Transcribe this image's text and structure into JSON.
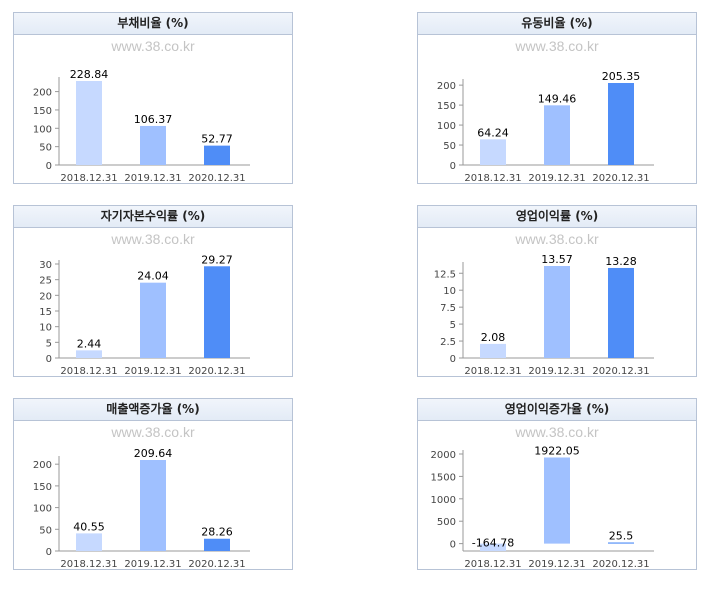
{
  "watermark": "www.38.co.kr",
  "colors": [
    "#c6d9ff",
    "#9fc0ff",
    "#4f8df7"
  ],
  "chart_data": [
    {
      "type": "bar",
      "title": "부채비율 (%)",
      "categories": [
        "2018.12.31",
        "2019.12.31",
        "2020.12.31"
      ],
      "values": [
        228.84,
        106.37,
        52.77
      ],
      "value_labels": [
        "228.84",
        "106.37",
        "52.77"
      ],
      "yticks": [
        0,
        50,
        100,
        150,
        200
      ],
      "ylim": [
        0,
        228.84
      ],
      "xlabel": "",
      "ylabel": ""
    },
    {
      "type": "bar",
      "title": "유동비율 (%)",
      "categories": [
        "2018.12.31",
        "2019.12.31",
        "2020.12.31"
      ],
      "values": [
        64.24,
        149.46,
        205.35
      ],
      "value_labels": [
        "64.24",
        "149.46",
        "205.35"
      ],
      "yticks": [
        0,
        50,
        100,
        150,
        200
      ],
      "ylim": [
        0,
        205.35
      ],
      "xlabel": "",
      "ylabel": ""
    },
    {
      "type": "bar",
      "title": "자기자본수익률 (%)",
      "categories": [
        "2018.12.31",
        "2019.12.31",
        "2020.12.31"
      ],
      "values": [
        2.44,
        24.04,
        29.27
      ],
      "value_labels": [
        "2.44",
        "24.04",
        "29.27"
      ],
      "yticks": [
        0,
        5,
        10,
        15,
        20,
        25,
        30
      ],
      "ylim": [
        0,
        30
      ],
      "xlabel": "",
      "ylabel": ""
    },
    {
      "type": "bar",
      "title": "영업이익률 (%)",
      "categories": [
        "2018.12.31",
        "2019.12.31",
        "2020.12.31"
      ],
      "values": [
        2.08,
        13.57,
        13.28
      ],
      "value_labels": [
        "2.08",
        "13.57",
        "13.28"
      ],
      "yticks": [
        0,
        2.5,
        5,
        7.5,
        10,
        12.5
      ],
      "ylim": [
        0,
        13.57
      ],
      "xlabel": "",
      "ylabel": ""
    },
    {
      "type": "bar",
      "title": "매출액증가율 (%)",
      "categories": [
        "2018.12.31",
        "2019.12.31",
        "2020.12.31"
      ],
      "values": [
        40.55,
        209.64,
        28.26
      ],
      "value_labels": [
        "40.55",
        "209.64",
        "28.26"
      ],
      "yticks": [
        0,
        50,
        100,
        150,
        200
      ],
      "ylim": [
        0,
        209.64
      ],
      "xlabel": "",
      "ylabel": ""
    },
    {
      "type": "bar",
      "title": "영업이익증가율 (%)",
      "categories": [
        "2018.12.31",
        "2019.12.31",
        "2020.12.31"
      ],
      "values": [
        -164.78,
        1922.05,
        25.5
      ],
      "value_labels": [
        "-164.78",
        "1922.05",
        "25.5"
      ],
      "yticks": [
        0,
        500,
        1000,
        1500,
        2000
      ],
      "ylim": [
        -164.78,
        2000
      ],
      "xlabel": "",
      "ylabel": ""
    }
  ]
}
